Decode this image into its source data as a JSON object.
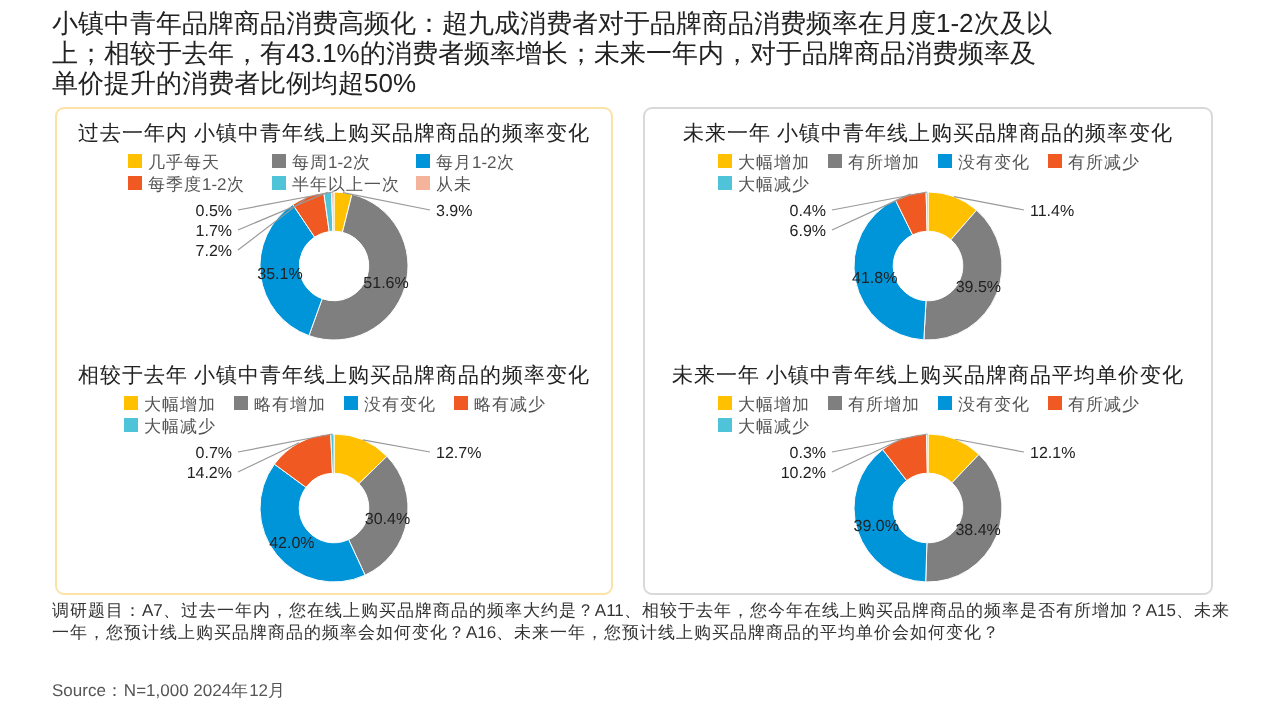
{
  "chart_data": [
    {
      "type": "donut",
      "title": "过去一年内 小镇中青年线上购买品牌商品的频率变化",
      "categories": [
        "几乎每天",
        "每周1-2次",
        "每月1-2次",
        "每季度1-2次",
        "半年以上一次",
        "从未"
      ],
      "values": [
        3.9,
        51.6,
        35.1,
        7.2,
        1.7,
        0.5
      ],
      "colors": [
        "#ffc000",
        "#7f7f7f",
        "#0095d9",
        "#f05a22",
        "#4fc3d8",
        "#f4b39b"
      ],
      "value_labels": [
        "3.9%",
        "51.6%",
        "35.1%",
        "7.2%",
        "1.7%",
        "0.5%"
      ],
      "legend": "top",
      "annotations": [
        "小镇中青年品牌商品消费高频化：超九成消费者对于品牌商品消费频率在月度1-2次及以上；相较于去年，有43.1%的消费者频率增长；未来一年内，对于品牌商品消费频率及单价提升的消费者比例均超50%"
      ]
    },
    {
      "type": "donut",
      "title": "未来一年 小镇中青年线上购买品牌商品的频率变化",
      "categories": [
        "大幅增加",
        "有所增加",
        "没有变化",
        "有所减少",
        "大幅减少"
      ],
      "values": [
        11.4,
        39.5,
        41.8,
        6.9,
        0.4
      ],
      "colors": [
        "#ffc000",
        "#7f7f7f",
        "#0095d9",
        "#f05a22",
        "#4fc3d8"
      ],
      "value_labels": [
        "11.4%",
        "39.5%",
        "41.8%",
        "6.9%",
        "0.4%"
      ],
      "legend": "top"
    },
    {
      "type": "donut",
      "title": "相较于去年 小镇中青年线上购买品牌商品的频率变化",
      "categories": [
        "大幅增加",
        "略有增加",
        "没有变化",
        "略有减少",
        "大幅减少"
      ],
      "values": [
        12.7,
        30.4,
        42.0,
        14.2,
        0.7
      ],
      "colors": [
        "#ffc000",
        "#7f7f7f",
        "#0095d9",
        "#f05a22",
        "#4fc3d8"
      ],
      "value_labels": [
        "12.7%",
        "30.4%",
        "42.0%",
        "14.2%",
        "0.7%"
      ],
      "legend": "top"
    },
    {
      "type": "donut",
      "title": "未来一年 小镇中青年线上购买品牌商品平均单价变化",
      "categories": [
        "大幅增加",
        "有所增加",
        "没有变化",
        "有所减少",
        "大幅减少"
      ],
      "values": [
        12.1,
        38.4,
        39.0,
        10.2,
        0.3
      ],
      "colors": [
        "#ffc000",
        "#7f7f7f",
        "#0095d9",
        "#f05a22",
        "#4fc3d8"
      ],
      "value_labels": [
        "12.1%",
        "38.4%",
        "39.0%",
        "10.2%",
        "0.3%"
      ],
      "legend": "top",
      "annotations": [
        "调研题目：A7、过去一年内，您在线上购买品牌商品的频率大约是？A11、相较于去年，您今年在线上购买品牌商品的频率是否有所增加？A15、未来一年，您预计线上购买品牌商品的频率会如何变化？A16、未来一年，您预计线上购买品牌商品的平均单价会如何变化？",
        "Source：N=1,000 2024年12月"
      ]
    }
  ]
}
